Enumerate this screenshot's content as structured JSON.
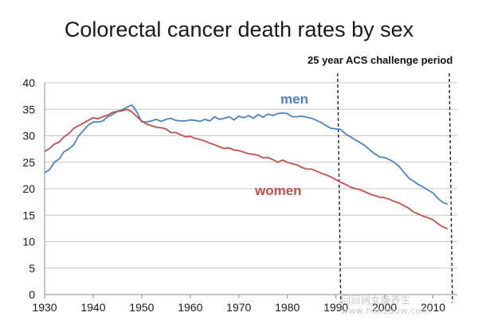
{
  "chart_data": {
    "type": "line",
    "title": "Colorectal cancer death rates by sex",
    "xlabel": "",
    "ylabel": "",
    "xlim": [
      1930,
      2015
    ],
    "ylim": [
      0,
      40
    ],
    "x_ticks": [
      1930,
      1940,
      1950,
      1960,
      1970,
      1980,
      1990,
      2000,
      2010
    ],
    "y_ticks": [
      0,
      5,
      10,
      15,
      20,
      25,
      30,
      35,
      40
    ],
    "grid": true,
    "annotations": {
      "period_label": "25 year ACS challenge period",
      "period_start": 1991,
      "period_end": 2014
    },
    "series": [
      {
        "name": "men",
        "color": "#4f81bd",
        "x": [
          1930,
          1931,
          1932,
          1933,
          1934,
          1935,
          1936,
          1937,
          1938,
          1939,
          1940,
          1941,
          1942,
          1943,
          1944,
          1945,
          1946,
          1947,
          1948,
          1949,
          1950,
          1951,
          1952,
          1953,
          1954,
          1955,
          1956,
          1957,
          1958,
          1959,
          1960,
          1961,
          1962,
          1963,
          1964,
          1965,
          1966,
          1967,
          1968,
          1969,
          1970,
          1971,
          1972,
          1973,
          1974,
          1975,
          1976,
          1977,
          1978,
          1979,
          1980,
          1981,
          1982,
          1983,
          1984,
          1985,
          1986,
          1987,
          1988,
          1989,
          1990,
          1991,
          1992,
          1993,
          1994,
          1995,
          1996,
          1997,
          1998,
          1999,
          2000,
          2001,
          2002,
          2003,
          2004,
          2005,
          2006,
          2007,
          2008,
          2009,
          2010,
          2011,
          2012,
          2013
        ],
        "values": [
          23.0,
          23.6,
          25.0,
          25.6,
          27.0,
          27.5,
          28.3,
          30.0,
          31.0,
          32.0,
          32.6,
          32.6,
          32.8,
          33.6,
          34.0,
          34.6,
          34.9,
          35.4,
          35.8,
          34.5,
          32.6,
          32.6,
          32.8,
          33.1,
          32.7,
          33.1,
          33.3,
          32.9,
          32.8,
          32.8,
          33.0,
          32.9,
          32.7,
          33.1,
          32.8,
          33.6,
          33.1,
          33.3,
          33.6,
          33.0,
          33.7,
          33.4,
          33.8,
          33.3,
          34.0,
          33.5,
          34.1,
          33.8,
          34.2,
          34.3,
          34.2,
          33.6,
          33.6,
          33.7,
          33.5,
          33.3,
          32.9,
          32.5,
          31.9,
          31.4,
          31.3,
          31.2,
          30.3,
          29.8,
          29.2,
          28.7,
          28.1,
          27.3,
          26.6,
          26.0,
          25.9,
          25.5,
          25.0,
          24.2,
          23.1,
          22.0,
          21.4,
          20.8,
          20.3,
          19.7,
          19.2,
          18.2,
          17.4,
          17.1
        ]
      },
      {
        "name": "women",
        "color": "#c0504d",
        "x": [
          1930,
          1931,
          1932,
          1933,
          1934,
          1935,
          1936,
          1937,
          1938,
          1939,
          1940,
          1941,
          1942,
          1943,
          1944,
          1945,
          1946,
          1947,
          1948,
          1949,
          1950,
          1951,
          1952,
          1953,
          1954,
          1955,
          1956,
          1957,
          1958,
          1959,
          1960,
          1961,
          1962,
          1963,
          1964,
          1965,
          1966,
          1967,
          1968,
          1969,
          1970,
          1971,
          1972,
          1973,
          1974,
          1975,
          1976,
          1977,
          1978,
          1979,
          1980,
          1981,
          1982,
          1983,
          1984,
          1985,
          1986,
          1987,
          1988,
          1989,
          1990,
          1991,
          1992,
          1993,
          1994,
          1995,
          1996,
          1997,
          1998,
          1999,
          2000,
          2001,
          2002,
          2003,
          2004,
          2005,
          2006,
          2007,
          2008,
          2009,
          2010,
          2011,
          2012,
          2013
        ],
        "values": [
          27.0,
          27.6,
          28.4,
          28.8,
          29.8,
          30.4,
          31.4,
          31.9,
          32.4,
          32.9,
          33.4,
          33.2,
          33.6,
          33.9,
          34.4,
          34.6,
          34.7,
          35.0,
          34.5,
          33.6,
          32.8,
          32.2,
          31.9,
          31.6,
          31.5,
          31.3,
          30.6,
          30.6,
          30.2,
          29.8,
          29.9,
          29.5,
          29.3,
          29.0,
          28.6,
          28.3,
          27.9,
          27.6,
          27.7,
          27.3,
          27.2,
          26.9,
          26.6,
          26.5,
          26.3,
          25.8,
          25.9,
          25.5,
          25.0,
          25.4,
          25.0,
          24.7,
          24.5,
          24.0,
          23.7,
          23.7,
          23.3,
          22.9,
          22.6,
          22.2,
          21.7,
          21.2,
          20.8,
          20.3,
          20.0,
          19.8,
          19.4,
          19.0,
          18.7,
          18.4,
          18.3,
          18.0,
          17.6,
          17.3,
          16.8,
          16.3,
          15.6,
          15.2,
          14.8,
          14.5,
          14.1,
          13.4,
          12.8,
          12.4
        ]
      }
    ]
  },
  "labels": {
    "men": "men",
    "women": "women"
  },
  "watermark": {
    "line1": "回回网女康养生",
    "line2": "www.haozuow.com"
  }
}
